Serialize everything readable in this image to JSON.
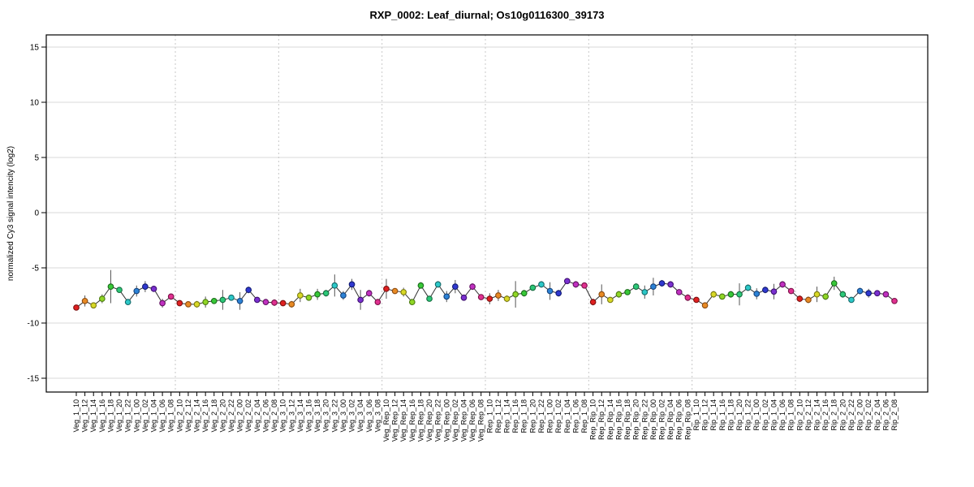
{
  "title": "RXP_0002: Leaf_diurnal; Os10g0116300_39173",
  "chart_data": {
    "type": "line",
    "title": "RXP_0002: Leaf_diurnal; Os10g0116300_39173",
    "xlabel": "",
    "ylabel": "normalized Cy3 signal intencity (log2)",
    "ylim": [
      -16,
      16
    ],
    "yticks": [
      15,
      10,
      5,
      0,
      -5,
      -10,
      -15
    ],
    "grid": {
      "horizontal": "solid light gray at each y tick",
      "vertical": "dotted light gray at group boundaries"
    },
    "legend": "none",
    "group_size": 12,
    "marker": "filled circle with dark outline, connected by dark line, vertical error bars",
    "palette": [
      {
        "name": "red",
        "fill": "#e02020",
        "stroke": "#7a1010"
      },
      {
        "name": "orange",
        "fill": "#e88a24",
        "stroke": "#8a4a10"
      },
      {
        "name": "yellow",
        "fill": "#d8d826",
        "stroke": "#7a7a10"
      },
      {
        "name": "chartreuse",
        "fill": "#90d626",
        "stroke": "#4a7a10"
      },
      {
        "name": "green",
        "fill": "#38c838",
        "stroke": "#1a6a1a"
      },
      {
        "name": "spring-green",
        "fill": "#2cc878",
        "stroke": "#156a3e"
      },
      {
        "name": "cyan",
        "fill": "#2cc8c8",
        "stroke": "#156a6a"
      },
      {
        "name": "azure",
        "fill": "#2c82d6",
        "stroke": "#15427a"
      },
      {
        "name": "blue",
        "fill": "#3038d0",
        "stroke": "#101a70"
      },
      {
        "name": "violet",
        "fill": "#7a30d0",
        "stroke": "#3e1070"
      },
      {
        "name": "magenta",
        "fill": "#c030c0",
        "stroke": "#601060"
      },
      {
        "name": "rose",
        "fill": "#e03090",
        "stroke": "#7a1048"
      }
    ],
    "categories": [
      "Veg_1_10",
      "Veg_1_12",
      "Veg_1_14",
      "Veg_1_16",
      "Veg_1_18",
      "Veg_1_20",
      "Veg_1_22",
      "Veg_1_00",
      "Veg_1_02",
      "Veg_1_04",
      "Veg_1_06",
      "Veg_1_08",
      "Veg_2_10",
      "Veg_2_12",
      "Veg_2_14",
      "Veg_2_16",
      "Veg_2_18",
      "Veg_2_20",
      "Veg_2_22",
      "Veg_2_00",
      "Veg_2_02",
      "Veg_2_04",
      "Veg_2_06",
      "Veg_2_08",
      "Veg_3_10",
      "Veg_3_12",
      "Veg_3_14",
      "Veg_3_16",
      "Veg_3_18",
      "Veg_3_20",
      "Veg_3_22",
      "Veg_3_00",
      "Veg_3_02",
      "Veg_3_04",
      "Veg_3_06",
      "Veg_3_08",
      "Veg_Rep_10",
      "Veg_Rep_12",
      "Veg_Rep_14",
      "Veg_Rep_16",
      "Veg_Rep_18",
      "Veg_Rep_20",
      "Veg_Rep_22",
      "Veg_Rep_00",
      "Veg_Rep_02",
      "Veg_Rep_04",
      "Veg_Rep_06",
      "Veg_Rep_08",
      "Rep_1_10",
      "Rep_1_12",
      "Rep_1_14",
      "Rep_1_16",
      "Rep_1_18",
      "Rep_1_20",
      "Rep_1_22",
      "Rep_1_00",
      "Rep_1_02",
      "Rep_1_04",
      "Rep_1_06",
      "Rep_1_08",
      "Rep_Rip_10",
      "Rep_Rip_12",
      "Rep_Rip_14",
      "Rep_Rip_16",
      "Rep_Rip_18",
      "Rep_Rip_20",
      "Rep_Rip_22",
      "Rep_Rip_00",
      "Rep_Rip_02",
      "Rep_Rip_04",
      "Rep_Rip_06",
      "Rep_Rip_08",
      "Rip_1_10",
      "Rip_1_12",
      "Rip_1_14",
      "Rip_1_16",
      "Rip_1_18",
      "Rip_1_20",
      "Rip_1_22",
      "Rip_1_00",
      "Rip_1_02",
      "Rip_1_04",
      "Rip_1_06",
      "Rip_1_08",
      "Rip_2_10",
      "Rip_2_12",
      "Rip_2_14",
      "Rip_2_16",
      "Rip_2_18",
      "Rip_2_20",
      "Rip_2_22",
      "Rip_2_00",
      "Rip_2_02",
      "Rip_2_04",
      "Rip_2_06",
      "Rip_2_08"
    ],
    "values": [
      -8.6,
      -8.0,
      -8.4,
      -7.8,
      -6.7,
      -7.0,
      -8.1,
      -7.1,
      -6.7,
      -6.9,
      -8.2,
      -7.6,
      -8.2,
      -8.3,
      -8.3,
      -8.1,
      -8.0,
      -7.9,
      -7.7,
      -8.0,
      -7.0,
      -7.9,
      -8.1,
      -8.15,
      -8.2,
      -8.3,
      -7.5,
      -7.7,
      -7.4,
      -7.3,
      -6.6,
      -7.5,
      -6.5,
      -7.9,
      -7.3,
      -8.1,
      -6.9,
      -7.1,
      -7.2,
      -8.1,
      -6.6,
      -7.8,
      -6.5,
      -7.6,
      -6.7,
      -7.7,
      -6.7,
      -7.65,
      -7.8,
      -7.5,
      -7.8,
      -7.4,
      -7.3,
      -6.8,
      -6.5,
      -7.1,
      -7.3,
      -6.2,
      -6.5,
      -6.6,
      -8.1,
      -7.4,
      -7.9,
      -7.4,
      -7.2,
      -6.7,
      -7.2,
      -6.7,
      -6.4,
      -6.5,
      -7.2,
      -7.7,
      -7.9,
      -8.4,
      -7.4,
      -7.6,
      -7.4,
      -7.4,
      -6.8,
      -7.35,
      -7.0,
      -7.15,
      -6.5,
      -7.1,
      -7.8,
      -7.9,
      -7.4,
      -7.6,
      -6.4,
      -7.4,
      -7.9,
      -7.1,
      -7.3,
      -7.3,
      -7.4,
      -8.0
    ],
    "errors": [
      0.2,
      0.5,
      0.2,
      0.4,
      1.5,
      0.2,
      0.2,
      0.5,
      0.5,
      0.2,
      0.4,
      0.2,
      0.2,
      0.2,
      0.3,
      0.5,
      0.2,
      0.9,
      0.2,
      0.8,
      0.3,
      0.2,
      0.2,
      0.3,
      0.2,
      0.3,
      0.6,
      0.2,
      0.5,
      0.3,
      1.0,
      0.4,
      0.5,
      0.9,
      0.3,
      0.2,
      0.9,
      0.2,
      0.4,
      0.2,
      0.3,
      0.2,
      0.3,
      0.5,
      0.6,
      0.2,
      0.3,
      0.2,
      0.5,
      0.5,
      0.3,
      1.2,
      0.3,
      0.2,
      0.3,
      0.8,
      0.3,
      0.2,
      0.3,
      0.2,
      0.3,
      0.9,
      0.2,
      0.3,
      0.2,
      0.3,
      0.6,
      0.8,
      0.3,
      0.3,
      0.2,
      0.3,
      0.2,
      0.2,
      0.3,
      0.2,
      0.3,
      1.0,
      0.3,
      0.5,
      0.3,
      0.7,
      0.3,
      0.2,
      0.3,
      0.3,
      0.7,
      0.3,
      0.6,
      0.3,
      0.2,
      0.3,
      0.4,
      0.2,
      0.2,
      0.2
    ]
  },
  "colors": {
    "background": "#ffffff",
    "plot_border": "#000000",
    "grid_horizontal": "#d8d8d8",
    "grid_vertical_dotted": "#c8c8c8",
    "connect_line": "#303030",
    "error_bar": "#555555"
  }
}
